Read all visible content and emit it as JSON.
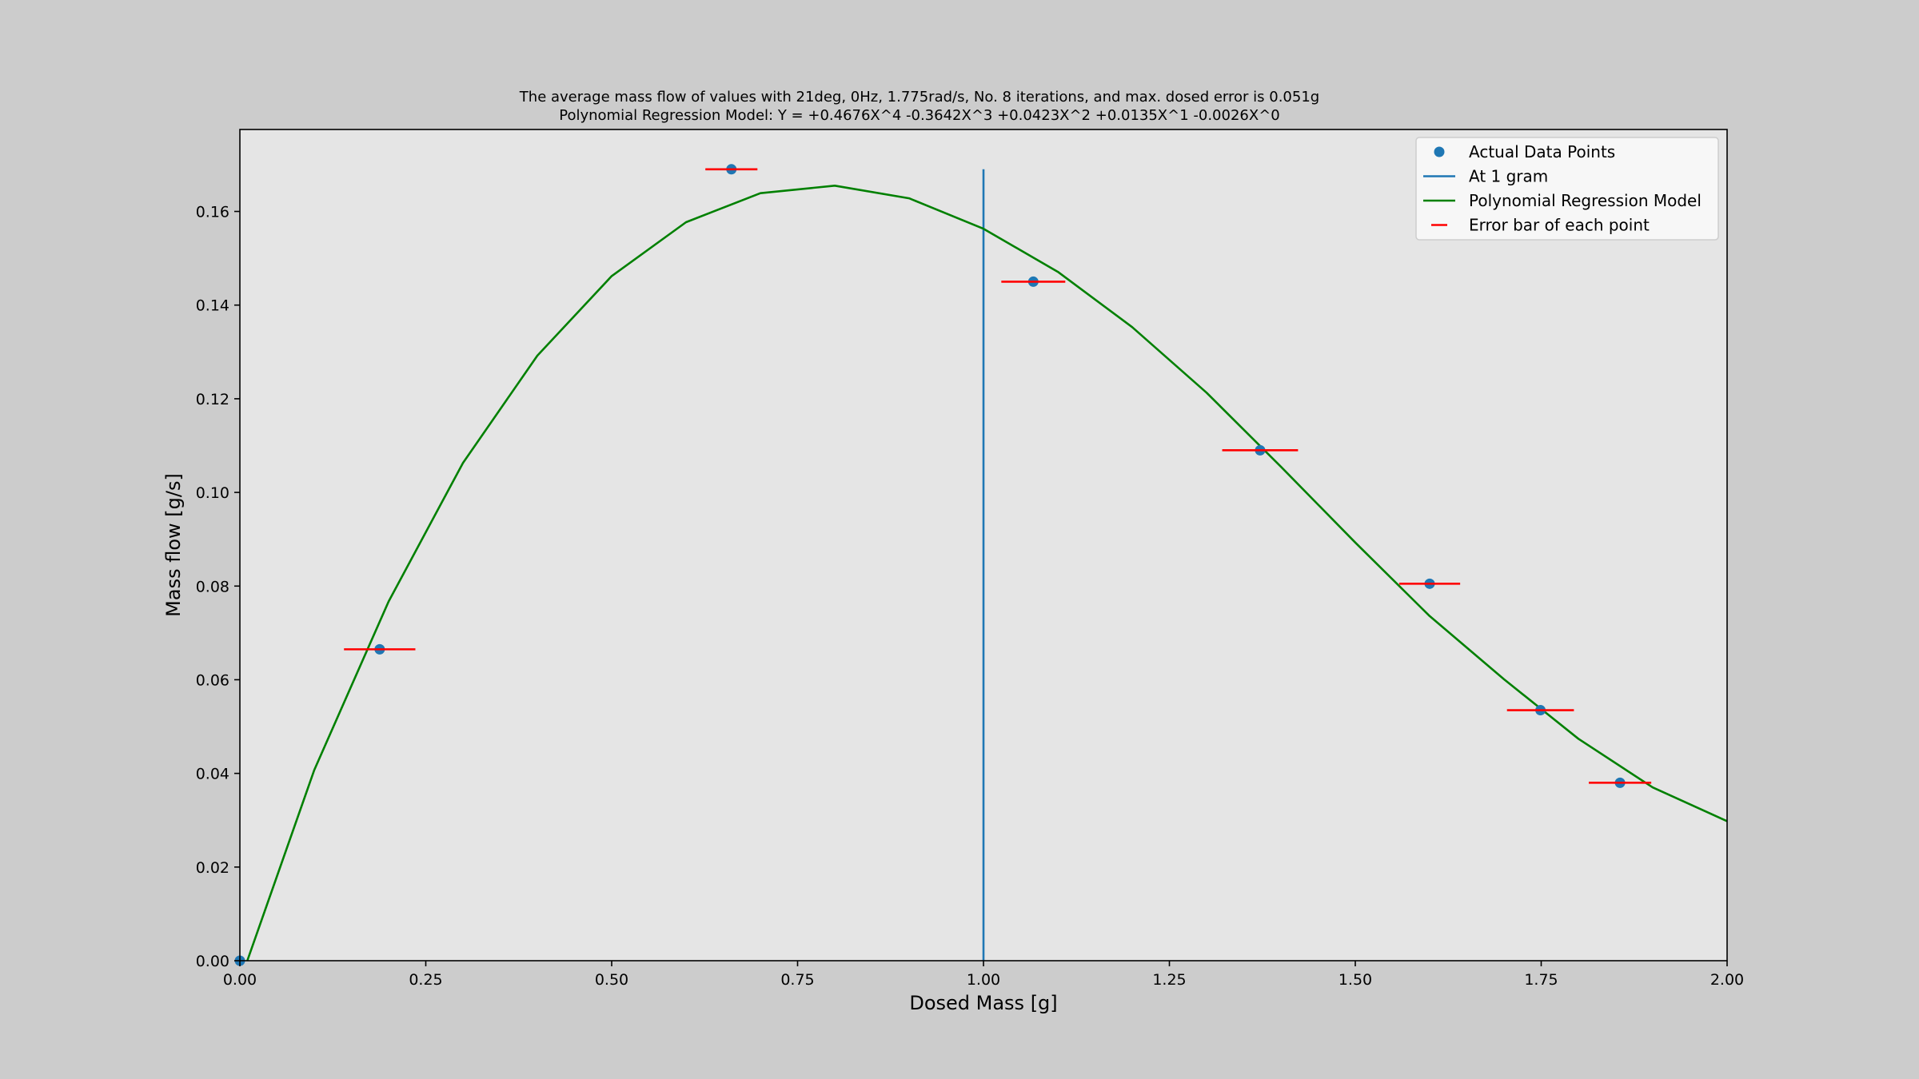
{
  "chart_data": {
    "type": "scatter",
    "title_line1": "The average mass flow of values with 21deg, 0Hz, 1.775rad/s, No. 8 iterations, and max. dosed error is 0.051g",
    "title_line2": "Polynomial Regression Model: Y = +0.4676X^4 -0.3642X^3 +0.0423X^2 +0.0135X^1 -0.0026X^0",
    "xlabel": "Dosed Mass [g]",
    "ylabel": "Mass flow [g/s]",
    "xlim": [
      0,
      2
    ],
    "ylim": [
      0,
      0.1775
    ],
    "grid": false,
    "legend_position": "top-right",
    "x_ticks": [
      {
        "value": 0,
        "label": "0.00"
      },
      {
        "value": 0.25,
        "label": "0.25"
      },
      {
        "value": 0.5,
        "label": "0.50"
      },
      {
        "value": 0.75,
        "label": "0.75"
      },
      {
        "value": 1.0,
        "label": "1.00"
      },
      {
        "value": 1.25,
        "label": "1.25"
      },
      {
        "value": 1.5,
        "label": "1.50"
      },
      {
        "value": 1.75,
        "label": "1.75"
      },
      {
        "value": 2.0,
        "label": "2.00"
      }
    ],
    "y_ticks": [
      {
        "value": 0,
        "label": "0.00"
      },
      {
        "value": 0.02,
        "label": "0.02"
      },
      {
        "value": 0.04,
        "label": "0.04"
      },
      {
        "value": 0.06,
        "label": "0.06"
      },
      {
        "value": 0.08,
        "label": "0.08"
      },
      {
        "value": 0.1,
        "label": "0.10"
      },
      {
        "value": 0.12,
        "label": "0.12"
      },
      {
        "value": 0.14,
        "label": "0.14"
      },
      {
        "value": 0.16,
        "label": "0.16"
      }
    ],
    "series": [
      {
        "name": "Actual Data Points",
        "kind": "scatter",
        "color": "#1f77b4",
        "points": [
          {
            "x": 0.0,
            "y": 0.0
          },
          {
            "x": 0.188,
            "y": 0.0665
          },
          {
            "x": 0.661,
            "y": 0.169
          },
          {
            "x": 1.067,
            "y": 0.145
          },
          {
            "x": 1.372,
            "y": 0.109
          },
          {
            "x": 1.6,
            "y": 0.0805
          },
          {
            "x": 1.749,
            "y": 0.0535
          },
          {
            "x": 1.856,
            "y": 0.038
          }
        ]
      },
      {
        "name": "At 1 gram",
        "kind": "vline",
        "color": "#1f77b4",
        "x": 1.0,
        "y_range": [
          0,
          0.169
        ]
      },
      {
        "name": "Polynomial Regression Model",
        "kind": "line",
        "color": "#008000",
        "x": [
          0.01,
          0.1,
          0.2,
          0.3,
          0.4,
          0.5,
          0.6,
          0.7,
          0.8,
          0.9,
          1.0,
          1.1,
          1.2,
          1.3,
          1.4,
          1.5,
          1.6,
          1.7,
          1.8,
          1.9,
          2.0
        ],
        "y": [
          0.0,
          0.0407,
          0.0767,
          0.1063,
          0.1292,
          0.1462,
          0.1577,
          0.1639,
          0.1655,
          0.1628,
          0.1563,
          0.1471,
          0.1353,
          0.1213,
          0.1055,
          0.0893,
          0.0736,
          0.0601,
          0.0474,
          0.037,
          0.0298
        ]
      },
      {
        "name": "Error bar of each point",
        "kind": "errorbar",
        "color": "#ff0000",
        "bars": [
          {
            "x": 0.188,
            "y": 0.0665,
            "xerr": 0.048
          },
          {
            "x": 0.661,
            "y": 0.169,
            "xerr": 0.035
          },
          {
            "x": 1.067,
            "y": 0.145,
            "xerr": 0.043
          },
          {
            "x": 1.372,
            "y": 0.109,
            "xerr": 0.051
          },
          {
            "x": 1.6,
            "y": 0.0805,
            "xerr": 0.041
          },
          {
            "x": 1.749,
            "y": 0.0535,
            "xerr": 0.045
          },
          {
            "x": 1.856,
            "y": 0.038,
            "xerr": 0.042
          }
        ]
      }
    ],
    "legend": [
      {
        "label": "Actual Data Points",
        "marker": "dot",
        "color": "#1f77b4"
      },
      {
        "label": "At 1 gram",
        "marker": "line",
        "color": "#1f77b4"
      },
      {
        "label": "Polynomial Regression Model",
        "marker": "line",
        "color": "#008000"
      },
      {
        "label": "Error bar of each point",
        "marker": "dash",
        "color": "#ff0000"
      }
    ]
  },
  "colors": {
    "figure_background": "#cccccc",
    "axes_background": "#e5e5e5",
    "legend_background": "#f9f9f9"
  }
}
